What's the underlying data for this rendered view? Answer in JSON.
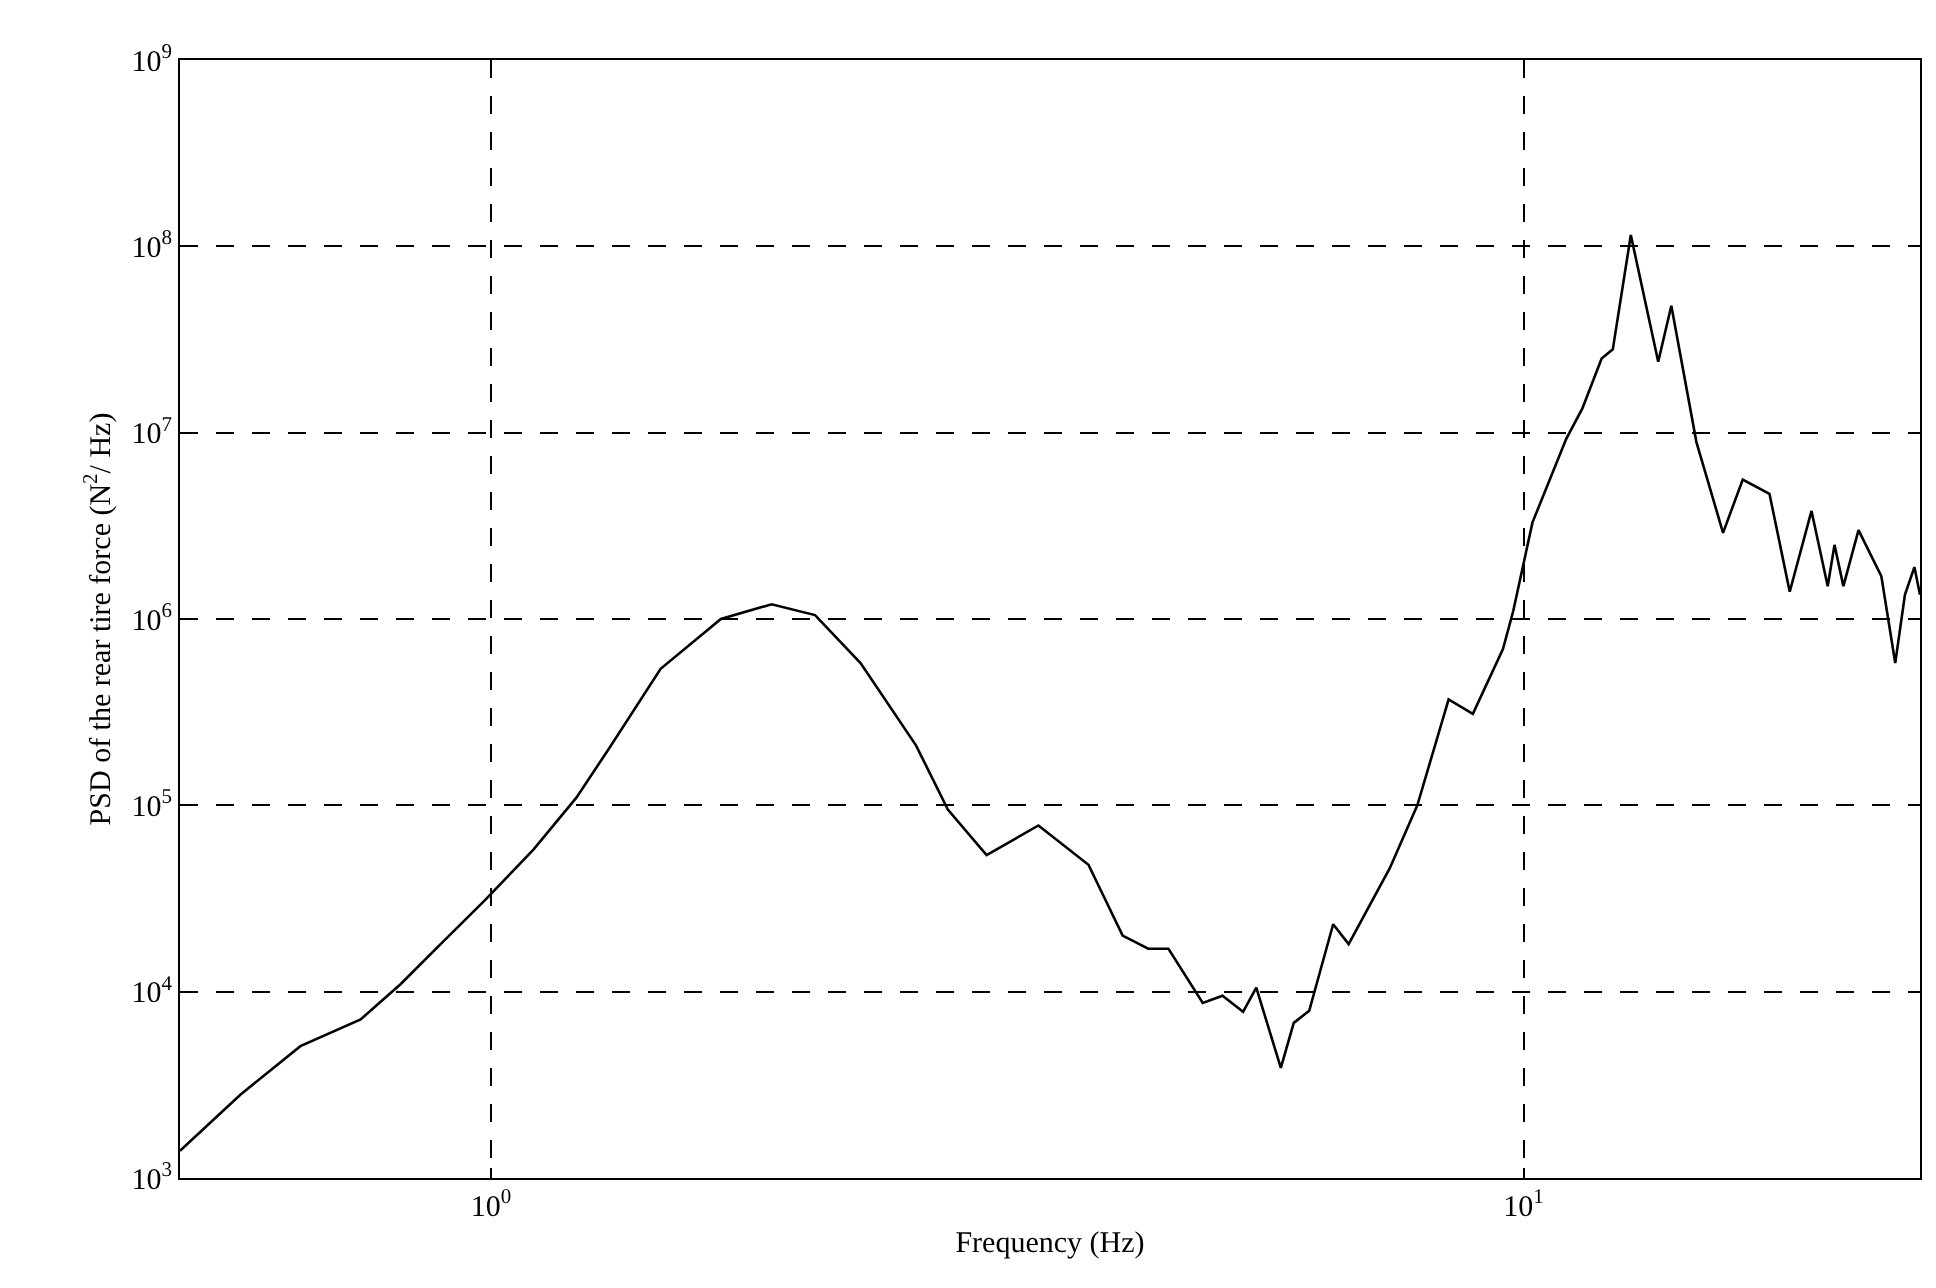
{
  "chart_data": {
    "type": "line",
    "xlabel": "Frequency (Hz)",
    "ylabel": "PSD of the rear tire force (N$^{2}$/ Hz)",
    "log": "xy",
    "grid": true,
    "marker": "none",
    "line_style": "solid",
    "xlim": [
      0.5,
      24.2
    ],
    "xticks": [
      {
        "value": 1,
        "label": "10$^{0}$"
      },
      {
        "value": 10,
        "label": "10$^{1}$"
      }
    ],
    "ylim": [
      1000,
      1000000000
    ],
    "yticks": [
      {
        "value": 1000,
        "label": "10$^{3}$"
      },
      {
        "value": 10000,
        "label": "10$^{4}$"
      },
      {
        "value": 100000,
        "label": "10$^{5}$"
      },
      {
        "value": 1000000,
        "label": "10$^{6}$"
      },
      {
        "value": 10000000,
        "label": "10$^{7}$"
      },
      {
        "value": 100000000,
        "label": "10$^{8}$"
      },
      {
        "value": 1000000000,
        "label": "10$^{9}$"
      }
    ],
    "x": [
      0.5,
      0.572,
      0.654,
      0.748,
      0.818,
      0.894,
      0.987,
      1.1,
      1.21,
      1.3,
      1.46,
      1.67,
      1.87,
      2.06,
      2.28,
      2.58,
      2.77,
      3.02,
      3.39,
      3.79,
      4.09,
      4.33,
      4.53,
      4.89,
      5.11,
      5.35,
      5.51,
      5.82,
      5.99,
      6.2,
      6.54,
      6.77,
      7.42,
      7.89,
      8.46,
      8.93,
      9.55,
      9.77,
      10.2,
      11.0,
      11.4,
      11.9,
      12.2,
      12.7,
      13.5,
      13.9,
      14.7,
      15.6,
      16.3,
      17.3,
      18.1,
      19.0,
      19.7,
      20.0,
      20.4,
      21.1,
      22.2,
      22.9,
      23.4,
      23.9,
      24.2
    ],
    "series": [
      {
        "color": "#000000",
        "values": [
          1400,
          2800,
          5100,
          7100,
          11000,
          18000,
          31000,
          58000,
          110000,
          200000,
          540000,
          1000000,
          1200000,
          1050000,
          580000,
          210000,
          95000,
          54000,
          78000,
          48000,
          20000,
          17000,
          17000,
          8700,
          9500,
          7800,
          10500,
          3900,
          6800,
          7900,
          23000,
          18000,
          46000,
          100000,
          370000,
          310000,
          690000,
          1100000,
          3300000,
          9300000,
          13500000,
          25000000,
          28000000,
          115000000,
          24000000,
          48000000,
          8900000,
          2900000,
          5600000,
          4700000,
          1400000,
          3800000,
          1500000,
          2500000,
          1500000,
          3000000,
          1700000,
          580000,
          1350000,
          1900000,
          1350000
        ]
      }
    ]
  }
}
